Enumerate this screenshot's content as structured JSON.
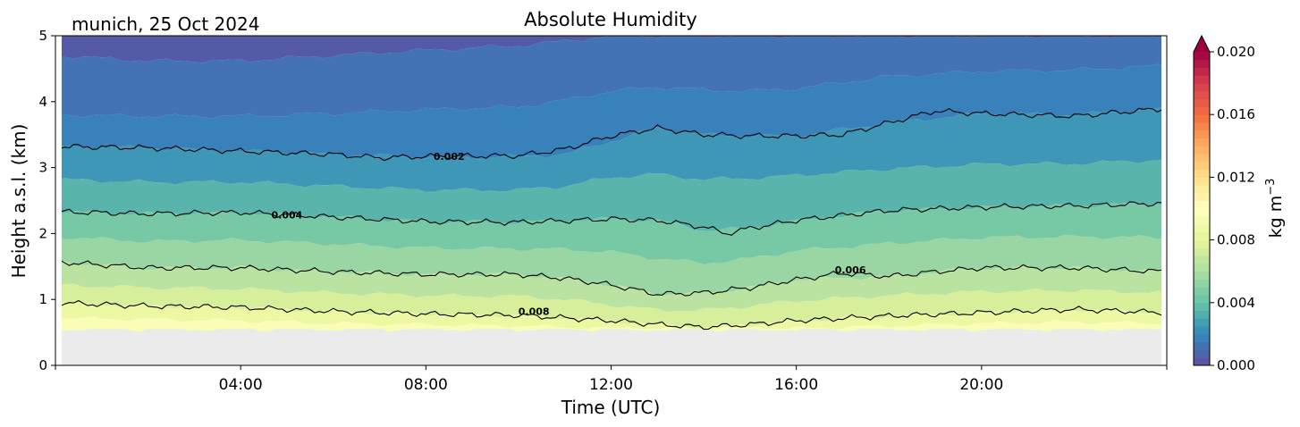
{
  "chart_data": {
    "type": "heatmap",
    "title": "Absolute Humidity",
    "subtitle": "munich, 25 Oct 2024",
    "xlabel": "Time (UTC)",
    "ylabel": "Height a.s.l. (km)",
    "xlim": [
      "00:00",
      "24:00"
    ],
    "ylim": [
      0,
      5
    ],
    "xticks": [
      "04:00",
      "08:00",
      "12:00",
      "16:00",
      "20:00"
    ],
    "yticks": [
      "0",
      "1",
      "2",
      "3",
      "4",
      "5"
    ],
    "colorbar": {
      "label": "kg m",
      "label_exponent": "−3",
      "range": [
        0.0,
        0.02
      ],
      "ticks": [
        "0.000",
        "0.004",
        "0.008",
        "0.012",
        "0.016",
        "0.020"
      ],
      "extend": "max",
      "colormap": "Spectral_r"
    },
    "no_data_below_km": 0.55,
    "no_data_color": "#ebebeb",
    "contours": [
      {
        "level": 0.002,
        "label": "0.002",
        "label_time": "08:30",
        "times": [
          "00:00",
          "02:00",
          "04:00",
          "06:00",
          "07:00",
          "08:00",
          "10:00",
          "11:00",
          "12:00",
          "13:00",
          "14:00",
          "15:00",
          "16:00",
          "17:00",
          "18:00",
          "19:00",
          "20:00",
          "22:00",
          "24:00"
        ],
        "heights_km": [
          3.32,
          3.3,
          3.25,
          3.2,
          3.15,
          3.17,
          3.18,
          3.28,
          3.48,
          3.6,
          3.5,
          3.48,
          3.48,
          3.5,
          3.68,
          3.86,
          3.82,
          3.78,
          3.9
        ]
      },
      {
        "level": 0.004,
        "label": "0.004",
        "label_time": "05:00",
        "times": [
          "00:00",
          "02:00",
          "04:00",
          "06:00",
          "08:00",
          "10:00",
          "12:00",
          "13:00",
          "14:00",
          "14:30",
          "15:00",
          "16:00",
          "18:00",
          "20:00",
          "22:00",
          "24:00"
        ],
        "heights_km": [
          2.33,
          2.3,
          2.32,
          2.25,
          2.18,
          2.17,
          2.22,
          2.2,
          2.1,
          2.0,
          2.08,
          2.2,
          2.35,
          2.4,
          2.42,
          2.46
        ],
        "label_height_km": 2.28
      },
      {
        "level": 0.006,
        "label": "0.006",
        "label_time": "17:10",
        "times": [
          "00:00",
          "02:00",
          "04:00",
          "06:00",
          "08:00",
          "10:00",
          "11:00",
          "12:00",
          "13:00",
          "14:00",
          "15:00",
          "16:00",
          "17:00",
          "18:00",
          "19:00",
          "20:00",
          "22:00",
          "24:00"
        ],
        "heights_km": [
          1.57,
          1.48,
          1.48,
          1.42,
          1.38,
          1.38,
          1.32,
          1.22,
          1.08,
          1.1,
          1.18,
          1.3,
          1.4,
          1.35,
          1.42,
          1.48,
          1.48,
          1.42
        ],
        "label_height_km": 1.45
      },
      {
        "level": 0.008,
        "label": "0.008",
        "label_time": "10:20",
        "times": [
          "00:00",
          "02:00",
          "04:00",
          "06:00",
          "08:00",
          "10:00",
          "11:00",
          "12:00",
          "13:00",
          "14:00",
          "15:00",
          "16:00",
          "18:00",
          "20:00",
          "22:00",
          "24:00"
        ],
        "heights_km": [
          0.95,
          0.9,
          0.88,
          0.82,
          0.78,
          0.76,
          0.72,
          0.68,
          0.62,
          0.58,
          0.62,
          0.68,
          0.75,
          0.8,
          0.85,
          0.8
        ],
        "label_height_km": 0.82
      }
    ],
    "filled_band_interfaces_km": [
      {
        "value": 0.01,
        "heights_km": [
          0.55,
          0.55,
          0.55,
          0.55,
          0.55,
          0.55,
          0.55,
          0.55,
          0.55,
          0.55,
          0.55,
          0.55,
          0.55,
          0.55,
          0.55,
          0.55
        ]
      },
      {
        "value": 0.009,
        "heights_km": [
          0.72,
          0.7,
          0.68,
          0.64,
          0.62,
          0.6,
          0.58,
          0.56,
          0.56,
          0.56,
          0.56,
          0.56,
          0.6,
          0.64,
          0.66,
          0.64
        ]
      },
      {
        "value": 0.008,
        "heights_km": [
          0.95,
          0.9,
          0.88,
          0.82,
          0.78,
          0.76,
          0.72,
          0.68,
          0.62,
          0.58,
          0.62,
          0.68,
          0.75,
          0.8,
          0.85,
          0.8
        ]
      },
      {
        "value": 0.007,
        "heights_km": [
          1.22,
          1.18,
          1.16,
          1.1,
          1.06,
          1.05,
          1.0,
          0.92,
          0.84,
          0.84,
          0.9,
          0.98,
          1.06,
          1.12,
          1.14,
          1.1
        ]
      },
      {
        "value": 0.006,
        "heights_km": [
          1.57,
          1.48,
          1.48,
          1.42,
          1.38,
          1.38,
          1.32,
          1.22,
          1.08,
          1.1,
          1.18,
          1.3,
          1.35,
          1.48,
          1.48,
          1.42
        ]
      },
      {
        "value": 0.005,
        "heights_km": [
          1.95,
          1.88,
          1.9,
          1.84,
          1.78,
          1.77,
          1.76,
          1.72,
          1.62,
          1.55,
          1.62,
          1.74,
          1.85,
          1.94,
          1.95,
          1.94
        ]
      },
      {
        "value": 0.004,
        "heights_km": [
          2.33,
          2.3,
          2.32,
          2.25,
          2.18,
          2.17,
          2.2,
          2.22,
          2.2,
          2.05,
          2.08,
          2.2,
          2.35,
          2.4,
          2.42,
          2.46
        ]
      },
      {
        "value": 0.003,
        "heights_km": [
          2.82,
          2.78,
          2.78,
          2.72,
          2.66,
          2.66,
          2.72,
          2.85,
          2.9,
          2.82,
          2.84,
          2.88,
          2.98,
          3.05,
          3.06,
          3.12
        ]
      },
      {
        "value": 0.002,
        "heights_km": [
          3.32,
          3.3,
          3.25,
          3.2,
          3.16,
          3.17,
          3.2,
          3.4,
          3.6,
          3.5,
          3.48,
          3.48,
          3.68,
          3.82,
          3.8,
          3.9
        ]
      },
      {
        "value": 0.0015,
        "heights_km": [
          3.8,
          3.78,
          3.78,
          3.82,
          3.88,
          3.92,
          4.02,
          4.16,
          4.22,
          4.18,
          4.16,
          4.2,
          4.38,
          4.46,
          4.48,
          4.55
        ]
      },
      {
        "value": 0.001,
        "heights_km": [
          4.7,
          4.62,
          4.62,
          4.7,
          4.78,
          4.85,
          4.92,
          5.0,
          5.0,
          5.0,
          5.0,
          5.0,
          5.0,
          5.0,
          5.0,
          5.0
        ]
      }
    ],
    "band_times": [
      "00:00",
      "02:00",
      "04:00",
      "06:00",
      "08:00",
      "10:00",
      "11:00",
      "12:00",
      "13:00",
      "14:00",
      "15:00",
      "16:00",
      "18:00",
      "20:00",
      "22:00",
      "24:00"
    ]
  }
}
